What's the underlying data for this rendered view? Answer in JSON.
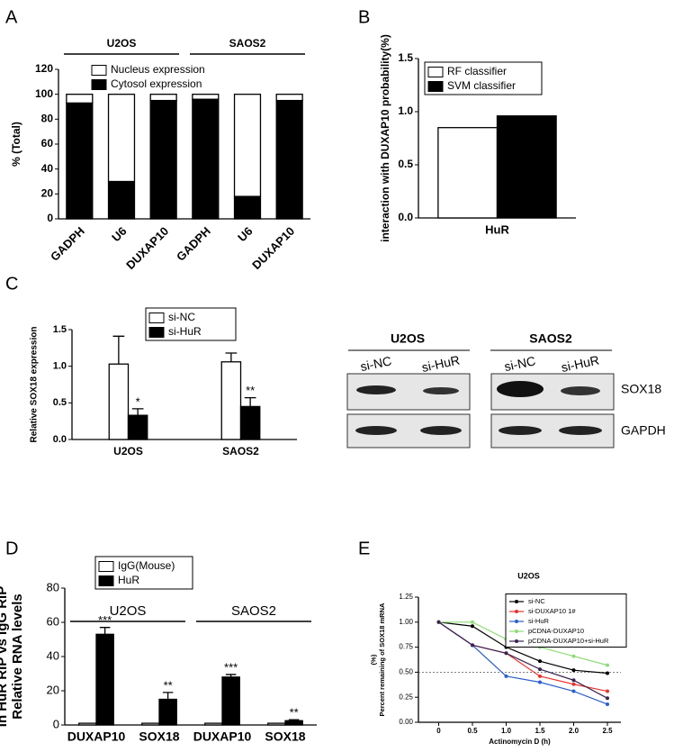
{
  "panels": [
    "A",
    "B",
    "C",
    "D",
    "E"
  ],
  "chart_data": [
    {
      "type": "bar",
      "stacked": true,
      "groups": [
        "U2OS",
        "SAOS2"
      ],
      "categories": [
        "GADPH",
        "U6",
        "DUXAP10",
        "GADPH",
        "U6",
        "DUXAP10"
      ],
      "ylabel": "% (Total)",
      "ylim": [
        0,
        120
      ],
      "yticks": [
        0,
        20,
        40,
        60,
        80,
        100,
        120
      ],
      "series": [
        {
          "name": "Nucleus expression",
          "color": "#ffffff",
          "values": [
            7,
            70,
            5,
            4,
            82,
            5
          ]
        },
        {
          "name": "Cytosol expression",
          "color": "#000000",
          "values": [
            93,
            30,
            95,
            96,
            18,
            95
          ]
        }
      ]
    },
    {
      "type": "bar",
      "categories": [
        "HuR"
      ],
      "ylabel": "interaction with DUXAP10 probability(%)",
      "ylim": [
        0,
        1.5
      ],
      "yticks": [
        {
          "value": 0,
          "label": "0.0"
        },
        0.5,
        {
          "value": 1,
          "label": "1.0"
        },
        1.5
      ],
      "series": [
        {
          "name": "RF classifier",
          "color": "#ffffff",
          "values": [
            0.85
          ]
        },
        {
          "name": "SVM classifier",
          "color": "#000000",
          "values": [
            0.96
          ]
        }
      ]
    },
    {
      "type": "bar",
      "categories": [
        "U2OS",
        "SAOS2"
      ],
      "ylabel": "Relative SOX18 expression",
      "ylim": [
        0,
        1.5
      ],
      "yticks": [
        {
          "value": 0,
          "label": "0.0"
        },
        0.5,
        {
          "value": 1,
          "label": "1.0"
        },
        1.5
      ],
      "series": [
        {
          "name": "si-NC",
          "color": "#ffffff",
          "values": [
            1.03,
            1.06
          ],
          "errors": [
            0.38,
            0.12
          ]
        },
        {
          "name": "si-HuR",
          "color": "#000000",
          "values": [
            0.33,
            0.45
          ],
          "errors": [
            0.09,
            0.12
          ],
          "significance": [
            "*",
            "**"
          ]
        }
      ]
    },
    {
      "type": "bar",
      "groups": [
        "U2OS",
        "SAOS2"
      ],
      "categories": [
        "DUXAP10",
        "SOX18",
        "DUXAP10",
        "SOX18"
      ],
      "ylabel": [
        "Relative RNA levels",
        "in HuR RIP vs IgG RIP"
      ],
      "ylim": [
        0,
        80
      ],
      "yticks": [
        0,
        20,
        40,
        60,
        80
      ],
      "series": [
        {
          "name": "IgG(Mouse)",
          "color": "#ffffff",
          "values": [
            1,
            1,
            1,
            1
          ]
        },
        {
          "name": "HuR",
          "color": "#000000",
          "values": [
            53,
            15,
            28,
            2.5
          ],
          "errors": [
            4,
            4,
            1.5,
            0.6
          ],
          "significance": [
            "***",
            "**",
            "***",
            "**"
          ]
        }
      ]
    },
    {
      "type": "line",
      "title": "U2OS",
      "xlabel": "Actinomycin D (h)",
      "ylabel": [
        "Percent remaining of SOX18 mRNA",
        "(%)"
      ],
      "x": [
        0,
        0.5,
        1,
        1.5,
        2,
        2.5
      ],
      "xlim": [
        -0.3,
        2.7
      ],
      "xticks": [
        0,
        0.5,
        {
          "value": 1,
          "label": "1.0"
        },
        1.5,
        {
          "value": 2,
          "label": "2.0"
        },
        2.5
      ],
      "ylim": [
        0,
        1.25
      ],
      "yticks": [
        {
          "value": 0,
          "label": "0.00"
        },
        0.25,
        {
          "value": 0.5,
          "label": "0.50"
        },
        0.75,
        {
          "value": 1,
          "label": "1.00"
        },
        1.25
      ],
      "refline": 0.5,
      "series": [
        {
          "name": "si-NC",
          "color": "#000000",
          "values": [
            1.0,
            0.96,
            0.75,
            0.61,
            0.52,
            0.49
          ]
        },
        {
          "name": "si-DUXAP10 1#",
          "color": "#e8332a",
          "values": [
            1.0,
            0.77,
            0.69,
            0.46,
            0.38,
            0.31
          ]
        },
        {
          "name": "si-HuR",
          "color": "#2b5fcc",
          "values": [
            1.0,
            0.77,
            0.46,
            0.4,
            0.31,
            0.18
          ]
        },
        {
          "name": "pCDNA-DUXAP10",
          "color": "#8fdc7a",
          "values": [
            1.0,
            1.0,
            0.83,
            0.75,
            0.66,
            0.57
          ]
        },
        {
          "name": "pCDNA-DUXAP10+si-HuR",
          "color": "#3a2450",
          "values": [
            1.0,
            0.77,
            0.69,
            0.53,
            0.42,
            0.24
          ]
        }
      ]
    }
  ],
  "blot": {
    "cell_lines": [
      "U2OS",
      "SAOS2"
    ],
    "lanes": [
      "si-NC",
      "si-HuR",
      "si-NC",
      "si-HuR"
    ],
    "proteins": [
      "SOX18",
      "GAPDH"
    ]
  }
}
